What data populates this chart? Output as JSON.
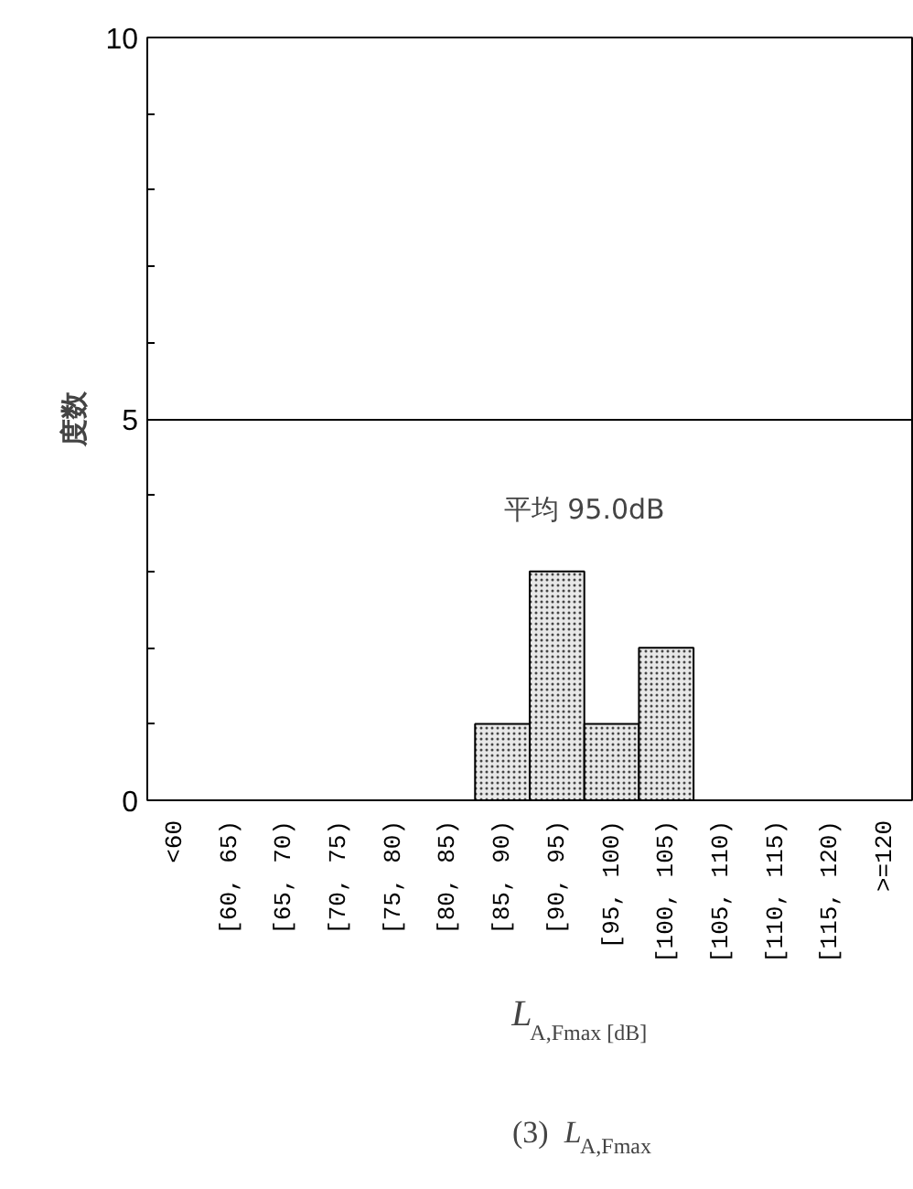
{
  "chart_data": {
    "type": "bar",
    "title": "(3) L$_{A,Fmax}$",
    "xlabel": "L$_{A,Fmax [dB]}$",
    "ylabel": "度数",
    "categories": [
      "<60",
      "[60, 65)",
      "[65, 70)",
      "[70, 75)",
      "[75, 80)",
      "[80, 85)",
      "[85, 90)",
      "[90, 95)",
      "[95, 100)",
      "[100, 105)",
      "[105, 110)",
      "[110, 115)",
      "[115, 120)",
      ">=120"
    ],
    "values": [
      0,
      0,
      0,
      0,
      0,
      0,
      1,
      3,
      1,
      2,
      0,
      0,
      0,
      0
    ],
    "color": "#e8e8e8",
    "ylim": [
      0,
      10
    ],
    "yticks": [
      0,
      5,
      10
    ],
    "grid": "y",
    "annotations": [
      "平均 95.0dB"
    ]
  }
}
